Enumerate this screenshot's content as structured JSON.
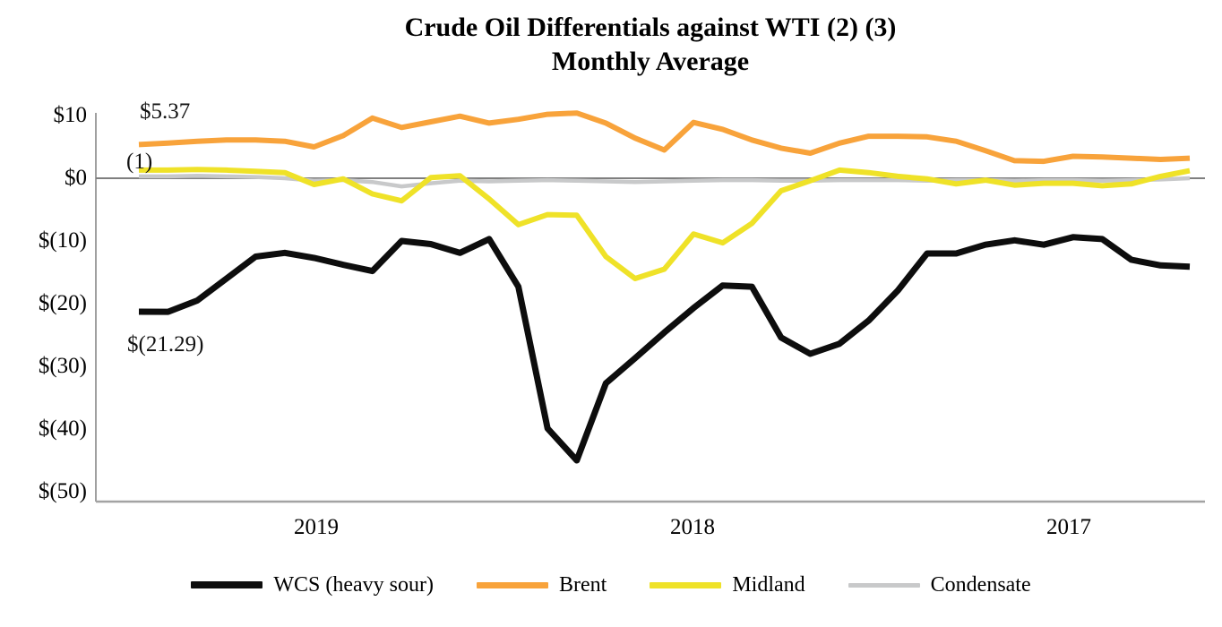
{
  "title": {
    "line1": "Crude Oil Differentials against WTI (2) (3)",
    "line2": "Monthly Average"
  },
  "chart_data": {
    "type": "line",
    "title": "Crude Oil Differentials against WTI (2) (3)",
    "subtitle": "Monthly Average",
    "x_axis": {
      "labels": [
        "2019",
        "2018",
        "2017"
      ],
      "direction": "reverse-chronological (2019 on left, 2017 on right)"
    },
    "y_axis": {
      "range": [
        -50,
        10
      ],
      "ticks": [
        {
          "label": "$10",
          "value": 10
        },
        {
          "label": "$0",
          "value": 0
        },
        {
          "label": "$(10)",
          "value": -10
        },
        {
          "label": "$(20)",
          "value": -20
        },
        {
          "label": "$(30)",
          "value": -30
        },
        {
          "label": "$(40)",
          "value": -40
        },
        {
          "label": "$(50)",
          "value": -50
        }
      ]
    },
    "grid": false,
    "zero_line": true,
    "legend_position": "bottom",
    "series": [
      {
        "name": "WCS (heavy sour)",
        "color": "#0d0d0d",
        "values": [
          -21.29,
          -21.3,
          -19.5,
          -16.0,
          -12.5,
          -11.9,
          -12.7,
          -13.8,
          -14.8,
          -10.0,
          -10.5,
          -11.9,
          -9.7,
          -17.3,
          -39.9,
          -45.0,
          -32.7,
          -28.7,
          -24.6,
          -20.7,
          -17.1,
          -17.3,
          -25.4,
          -28.0,
          -26.4,
          -22.7,
          -17.9,
          -12.0,
          -12.0,
          -10.6,
          -9.9,
          -10.6,
          -9.4,
          -9.7,
          -13.0,
          -13.9,
          -14.1
        ]
      },
      {
        "name": "Brent",
        "color": "#F8A33B",
        "values": [
          5.37,
          5.6,
          5.9,
          6.1,
          6.1,
          5.9,
          5.0,
          6.8,
          9.6,
          8.1,
          9.0,
          9.9,
          8.8,
          9.4,
          10.2,
          10.4,
          8.8,
          6.4,
          4.5,
          8.9,
          7.8,
          6.1,
          4.8,
          4.0,
          5.6,
          6.7,
          6.7,
          6.6,
          5.9,
          4.4,
          2.8,
          2.7,
          3.5,
          3.4,
          3.2,
          3.0,
          3.2
        ]
      },
      {
        "name": "Midland",
        "color": "#EFE228",
        "values": [
          1.3,
          1.3,
          1.4,
          1.3,
          1.1,
          0.9,
          -1.0,
          -0.1,
          -2.5,
          -3.6,
          0.1,
          0.4,
          -3.3,
          -7.4,
          -5.8,
          -5.9,
          -12.5,
          -16.0,
          -14.5,
          -8.9,
          -10.3,
          -7.2,
          -2.0,
          -0.4,
          1.3,
          0.9,
          0.3,
          -0.1,
          -0.9,
          -0.3,
          -1.1,
          -0.8,
          -0.8,
          -1.2,
          -0.9,
          0.3,
          1.2
        ]
      },
      {
        "name": "Condensate",
        "color": "#C8C9CA",
        "values": [
          0.3,
          0.3,
          0.4,
          0.3,
          0.2,
          0.0,
          -0.4,
          -0.3,
          -0.6,
          -1.3,
          -0.8,
          -0.4,
          -0.5,
          -0.4,
          -0.3,
          -0.4,
          -0.5,
          -0.6,
          -0.5,
          -0.4,
          -0.3,
          -0.3,
          -0.4,
          -0.4,
          -0.3,
          -0.3,
          -0.3,
          -0.4,
          -0.3,
          -0.3,
          -0.4,
          -0.3,
          -0.3,
          -0.4,
          -0.3,
          -0.2,
          0.0
        ]
      }
    ],
    "annotations": [
      {
        "text": "$5.37",
        "refers_to": "first (leftmost) Brent value"
      },
      {
        "text": "(1)",
        "refers_to": "footnote marker"
      },
      {
        "text": "$(21.29)",
        "refers_to": "first (leftmost) WCS value"
      }
    ],
    "axis_colors": {
      "zero_line": "#7f7f7f",
      "y_axis_line": "#808080",
      "x_axis_line": "#a3a3a3"
    }
  }
}
